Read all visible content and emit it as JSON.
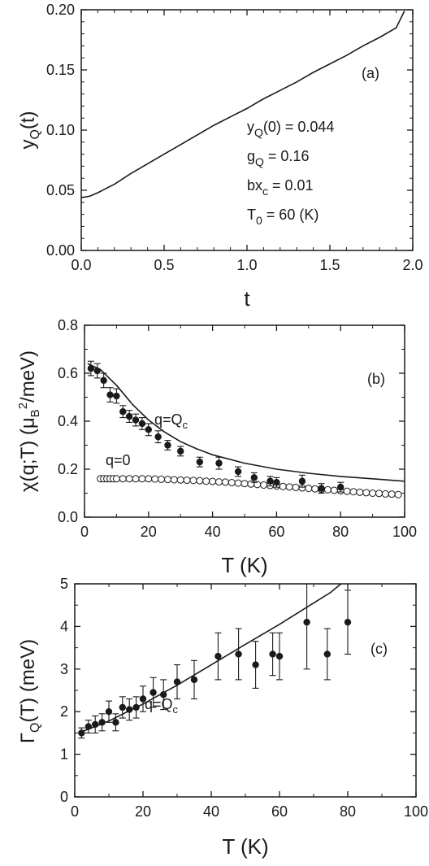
{
  "chart_data": [
    {
      "type": "line",
      "panel_label": "(a)",
      "xlabel": "t",
      "ylabel_main": "y",
      "ylabel_sub": "Q",
      "ylabel_tail": "(t)",
      "xlim": [
        0,
        2.0
      ],
      "ylim": [
        0,
        0.2
      ],
      "x_ticks": [
        "0.0",
        "0.5",
        "1.0",
        "1.5",
        "2.0"
      ],
      "y_ticks": [
        "0.00",
        "0.05",
        "0.10",
        "0.15",
        "0.20"
      ],
      "params": [
        {
          "main": "y",
          "sub": "Q",
          "rest": "(0) = 0.044"
        },
        {
          "main": "g",
          "sub": "Q",
          "rest": " = 0.16"
        },
        {
          "main": "bx",
          "sub": "c",
          "rest": " = 0.01"
        },
        {
          "main": "T",
          "sub": "0",
          "rest": " = 60 (K)"
        }
      ],
      "series": [
        {
          "x": [
            0,
            0.05,
            0.1,
            0.2,
            0.3,
            0.4,
            0.5,
            0.6,
            0.7,
            0.8,
            0.9,
            1.0,
            1.1,
            1.2,
            1.3,
            1.4,
            1.5,
            1.6,
            1.7,
            1.8,
            1.9,
            1.95
          ],
          "y": [
            0.044,
            0.045,
            0.048,
            0.055,
            0.064,
            0.072,
            0.08,
            0.088,
            0.096,
            0.104,
            0.111,
            0.118,
            0.126,
            0.133,
            0.14,
            0.148,
            0.155,
            0.162,
            0.17,
            0.177,
            0.185,
            0.199
          ]
        }
      ]
    },
    {
      "type": "scatter",
      "panel_label": "(b)",
      "xlabel": "T (K)",
      "ylabel_main": "χ(q;T) (μ",
      "ylabel_sub": "B",
      "ylabel_sup": "2",
      "ylabel_tail": "/meV)",
      "xlim": [
        0,
        100
      ],
      "ylim": [
        0,
        0.8
      ],
      "x_ticks": [
        "0",
        "20",
        "40",
        "60",
        "80",
        "100"
      ],
      "y_ticks": [
        "0.0",
        "0.2",
        "0.4",
        "0.6",
        "0.8"
      ],
      "annotations": [
        {
          "main": "q=Q",
          "sub": "c"
        },
        {
          "main": "q=0",
          "sub": ""
        }
      ],
      "filled_points": {
        "x": [
          2,
          4,
          6,
          8,
          10,
          12,
          14,
          16,
          18,
          20,
          23,
          26,
          30,
          36,
          42,
          48,
          53,
          58,
          60,
          68,
          74,
          80
        ],
        "y": [
          0.62,
          0.61,
          0.57,
          0.51,
          0.505,
          0.44,
          0.42,
          0.405,
          0.39,
          0.365,
          0.335,
          0.3,
          0.275,
          0.23,
          0.225,
          0.19,
          0.165,
          0.15,
          0.145,
          0.15,
          0.12,
          0.125
        ],
        "err": [
          0.03,
          0.03,
          0.03,
          0.03,
          0.03,
          0.025,
          0.025,
          0.025,
          0.025,
          0.025,
          0.025,
          0.02,
          0.02,
          0.02,
          0.025,
          0.02,
          0.02,
          0.02,
          0.02,
          0.025,
          0.02,
          0.02
        ]
      },
      "open_points": {
        "x": [
          5,
          6,
          7,
          8,
          9,
          10,
          12,
          14,
          16,
          18,
          20,
          22,
          24,
          26,
          28,
          30,
          32,
          34,
          36,
          38,
          40,
          42,
          44,
          46,
          48,
          50,
          52,
          54,
          56,
          58,
          60,
          62,
          64,
          66,
          68,
          70,
          72,
          74,
          76,
          78,
          80,
          82,
          84,
          86,
          88,
          90,
          92,
          94,
          96,
          98
        ],
        "y": [
          0.16,
          0.16,
          0.16,
          0.16,
          0.16,
          0.16,
          0.16,
          0.16,
          0.16,
          0.16,
          0.16,
          0.159,
          0.158,
          0.157,
          0.156,
          0.155,
          0.154,
          0.153,
          0.152,
          0.15,
          0.149,
          0.147,
          0.146,
          0.144,
          0.142,
          0.14,
          0.138,
          0.136,
          0.134,
          0.132,
          0.13,
          0.128,
          0.126,
          0.124,
          0.122,
          0.12,
          0.118,
          0.116,
          0.114,
          0.112,
          0.11,
          0.108,
          0.106,
          0.104,
          0.102,
          0.1,
          0.099,
          0.097,
          0.096,
          0.094
        ]
      },
      "fit_line": {
        "x": [
          1,
          5,
          10,
          15,
          20,
          25,
          30,
          35,
          40,
          50,
          60,
          70,
          80,
          90,
          100
        ],
        "y": [
          0.64,
          0.615,
          0.55,
          0.47,
          0.405,
          0.355,
          0.315,
          0.285,
          0.26,
          0.225,
          0.2,
          0.183,
          0.17,
          0.16,
          0.15
        ]
      }
    },
    {
      "type": "scatter",
      "panel_label": "(c)",
      "xlabel": "T (K)",
      "ylabel_main": "Γ",
      "ylabel_sub": "Q",
      "ylabel_tail": "(T) (meV)",
      "xlim": [
        0,
        100
      ],
      "ylim": [
        0,
        5
      ],
      "x_ticks": [
        "0",
        "20",
        "40",
        "60",
        "80",
        "100"
      ],
      "y_ticks": [
        "0",
        "1",
        "2",
        "3",
        "4",
        "5"
      ],
      "annotations": [
        {
          "main": "q=Q",
          "sub": "c"
        }
      ],
      "filled_points": {
        "x": [
          2,
          4,
          6,
          8,
          10,
          12,
          14,
          16,
          18,
          20,
          23,
          26,
          30,
          35,
          42,
          48,
          53,
          58,
          60,
          68,
          74,
          80
        ],
        "y": [
          1.5,
          1.65,
          1.7,
          1.75,
          2.0,
          1.75,
          2.1,
          2.05,
          2.1,
          2.3,
          2.45,
          2.4,
          2.7,
          2.75,
          3.3,
          3.35,
          3.1,
          3.35,
          3.3,
          4.1,
          3.35,
          4.1
        ],
        "err": [
          0.12,
          0.15,
          0.2,
          0.2,
          0.25,
          0.2,
          0.25,
          0.25,
          0.25,
          0.3,
          0.35,
          0.35,
          0.4,
          0.45,
          0.55,
          0.6,
          0.55,
          0.5,
          0.55,
          1.1,
          0.6,
          0.75
        ]
      },
      "fit_line": {
        "x": [
          1,
          5,
          10,
          15,
          20,
          25,
          30,
          40,
          50,
          60,
          70,
          75,
          78
        ],
        "y": [
          1.5,
          1.62,
          1.78,
          1.98,
          2.18,
          2.4,
          2.62,
          3.1,
          3.58,
          4.05,
          4.55,
          4.8,
          5.0
        ]
      }
    }
  ]
}
